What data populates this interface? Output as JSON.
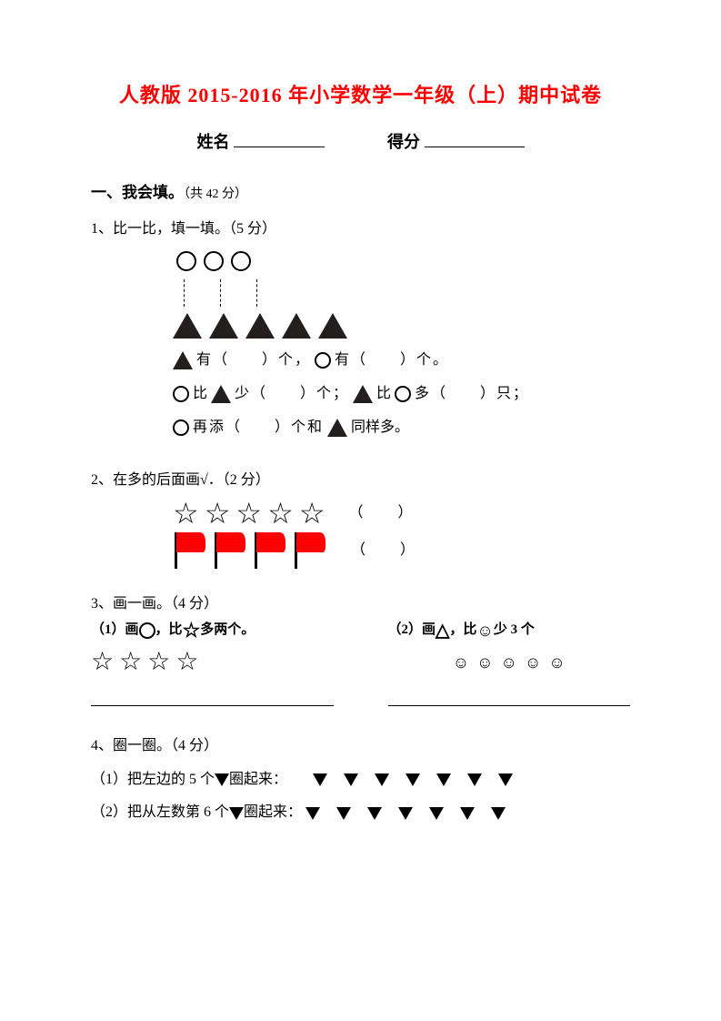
{
  "title": "人教版 2015-2016 年小学数学一年级（上）期中试卷",
  "info": {
    "name_label": "姓名",
    "score_label": "得分"
  },
  "section1": {
    "heading": "一、我会填。",
    "points": "（共 42 分）"
  },
  "q1": {
    "prompt": "1、比一比，填一填。（5 分）",
    "circles_count": 3,
    "triangles_count": 5,
    "line_a_1": "有（　　）个，",
    "line_a_2": "有（　　）个。",
    "line_b_1": "比",
    "line_b_2": "少（　　）个；",
    "line_b_3": "比",
    "line_b_4": "多（　　）只；",
    "line_c_1": "再添（　　）个和",
    "line_c_2": "同样多。"
  },
  "q2": {
    "prompt": "2、在多的后面画√．（2 分）",
    "stars_count": 5,
    "flags_count": 4,
    "paren": "（　　）"
  },
  "q3": {
    "prompt": "3、画一画。（4 分）",
    "left": {
      "label_1": "（1）画",
      "label_2": "，比",
      "label_3": "多两个。",
      "stars_count": 4
    },
    "right": {
      "label_1": "（2）画",
      "label_2": "，比",
      "label_3": "少 3 个",
      "smiles_count": 5
    },
    "triangle_glyph": "△"
  },
  "q4": {
    "prompt": "4、圈一圈。（4 分）",
    "line1_a": "（1）把左边的 5 个",
    "line1_b": "圈起来：",
    "line2_a": "（2）把从左数第 6 个",
    "line2_b": "圈起来：",
    "triangles_count": 7
  },
  "colors": {
    "title": "#ff0000",
    "text": "#000000",
    "flag": "#ff0000",
    "triangle_fill": "#231f1f",
    "background": "#ffffff"
  }
}
